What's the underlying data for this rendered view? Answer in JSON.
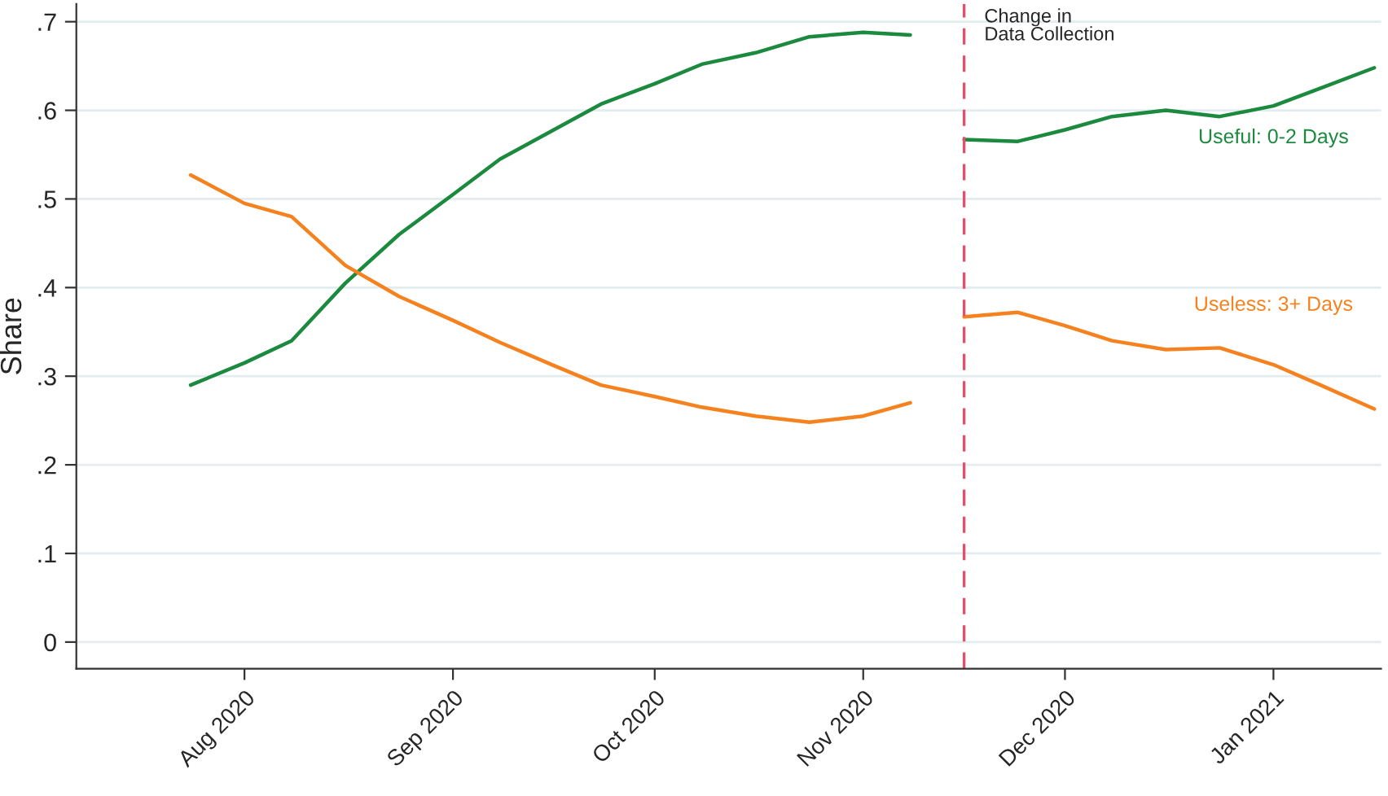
{
  "chart_data": {
    "type": "line",
    "ylabel": "Share",
    "series": [
      {
        "name": "Useful: 0-2 Days",
        "color": "#1b8a3e",
        "x": [
          "2020-07-24",
          "2020-08-01",
          "2020-08-08",
          "2020-08-16",
          "2020-08-24",
          "2020-09-01",
          "2020-09-08",
          "2020-09-16",
          "2020-09-23",
          "2020-10-01",
          "2020-10-08",
          "2020-10-16",
          "2020-10-24",
          "2020-11-01",
          "2020-11-08",
          null,
          "2020-11-16",
          "2020-11-24",
          "2020-12-01",
          "2020-12-08",
          "2020-12-16",
          "2020-12-24",
          "2021-01-01",
          "2021-01-08",
          "2021-01-16"
        ],
        "values": [
          0.29,
          0.315,
          0.34,
          0.405,
          0.46,
          0.505,
          0.545,
          0.578,
          0.607,
          0.63,
          0.652,
          0.665,
          0.683,
          0.688,
          0.685,
          null,
          0.567,
          0.565,
          0.578,
          0.593,
          0.6,
          0.593,
          0.605,
          0.625,
          0.648
        ]
      },
      {
        "name": "Useless: 3+ Days",
        "color": "#f5821f",
        "x": [
          "2020-07-24",
          "2020-08-01",
          "2020-08-08",
          "2020-08-16",
          "2020-08-24",
          "2020-09-01",
          "2020-09-08",
          "2020-09-16",
          "2020-09-23",
          "2020-10-01",
          "2020-10-08",
          "2020-10-16",
          "2020-10-24",
          "2020-11-01",
          "2020-11-08",
          null,
          "2020-11-16",
          "2020-11-24",
          "2020-12-01",
          "2020-12-08",
          "2020-12-16",
          "2020-12-24",
          "2021-01-01",
          "2021-01-08",
          "2021-01-16"
        ],
        "values": [
          0.527,
          0.495,
          0.48,
          0.425,
          0.39,
          0.363,
          0.338,
          0.312,
          0.29,
          0.277,
          0.265,
          0.255,
          0.248,
          0.255,
          0.27,
          null,
          0.367,
          0.372,
          0.357,
          0.34,
          0.33,
          0.332,
          0.313,
          0.29,
          0.263
        ]
      }
    ],
    "xlim": [
      "2020-07-07",
      "2021-01-17"
    ],
    "xticks": [
      {
        "value": "2020-08-01",
        "label": "Aug 2020"
      },
      {
        "value": "2020-09-01",
        "label": "Sep 2020"
      },
      {
        "value": "2020-10-01",
        "label": "Oct 2020"
      },
      {
        "value": "2020-11-01",
        "label": "Nov 2020"
      },
      {
        "value": "2020-12-01",
        "label": "Dec 2020"
      },
      {
        "value": "2021-01-01",
        "label": "Jan 2021"
      }
    ],
    "ylim": [
      -0.03,
      0.72
    ],
    "yticks": [
      0,
      {
        "value": 0.1,
        "label": ".1"
      },
      {
        "value": 0.2,
        "label": ".2"
      },
      {
        "value": 0.3,
        "label": ".3"
      },
      {
        "value": 0.4,
        "label": ".4"
      },
      {
        "value": 0.5,
        "label": ".5"
      },
      {
        "value": 0.6,
        "label": ".6"
      },
      {
        "value": 0.7,
        "label": ".7"
      }
    ],
    "grid": "y",
    "ref_lines": [
      {
        "axis": "x",
        "value": "2020-11-16",
        "label": "Change in\nData Collection",
        "color": "#e0506e",
        "line_style": "dashed"
      }
    ]
  }
}
